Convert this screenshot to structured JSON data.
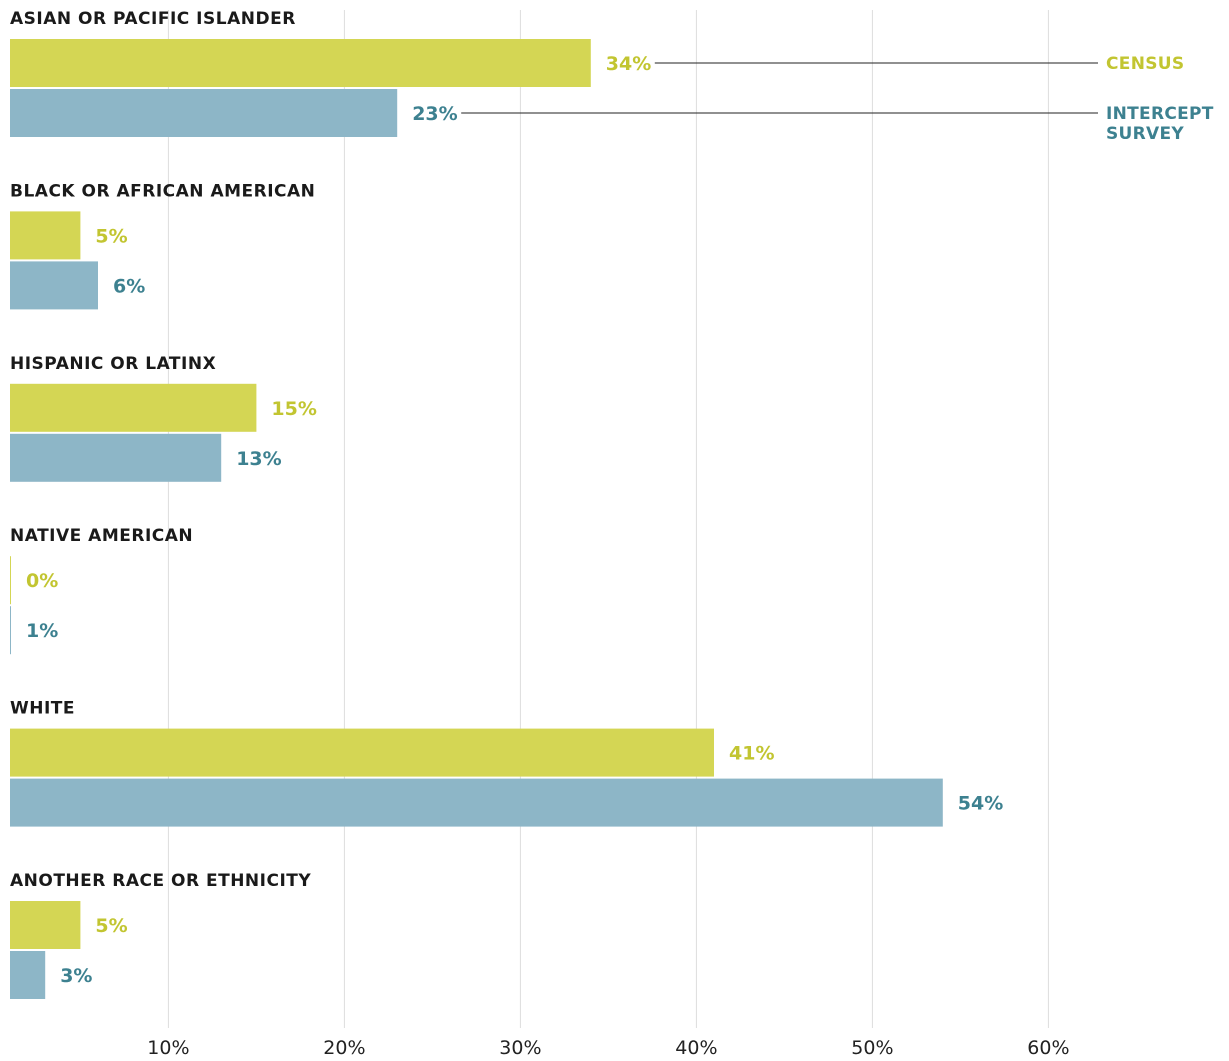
{
  "chart_data": {
    "type": "bar",
    "orientation": "horizontal",
    "categories": [
      "ASIAN OR PACIFIC ISLANDER",
      "BLACK OR AFRICAN AMERICAN",
      "HISPANIC OR LATINX",
      "NATIVE AMERICAN",
      "WHITE",
      "ANOTHER RACE OR ETHNICITY"
    ],
    "series": [
      {
        "name": "CENSUS",
        "values": [
          34,
          5,
          15,
          0,
          41,
          5
        ],
        "labels": [
          "34%",
          "5%",
          "15%",
          "0%",
          "41%",
          "5%"
        ],
        "bar_color": "#d4d654",
        "label_color": "#c2c531"
      },
      {
        "name": "INTERCEPT SURVEY",
        "values": [
          23,
          6,
          13,
          1,
          54,
          3
        ],
        "labels": [
          "23%",
          "6%",
          "13%",
          "1%",
          "54%",
          "3%"
        ],
        "bar_color": "#8db6c7",
        "label_color": "#3d8190"
      }
    ],
    "xlim": [
      1,
      68
    ],
    "xticks": [
      10,
      20,
      30,
      40,
      50,
      60
    ],
    "xtick_labels": [
      "10%",
      "20%",
      "30%",
      "40%",
      "50%",
      "60%"
    ],
    "grid": "vertical",
    "grid_color": "#dddddd",
    "legend_lines": [
      {
        "series": 0,
        "lines": [
          "CENSUS"
        ]
      },
      {
        "series": 1,
        "lines": [
          "INTERCEPT",
          "SURVEY"
        ]
      }
    ],
    "legend_placement": "right, inline with first category"
  }
}
